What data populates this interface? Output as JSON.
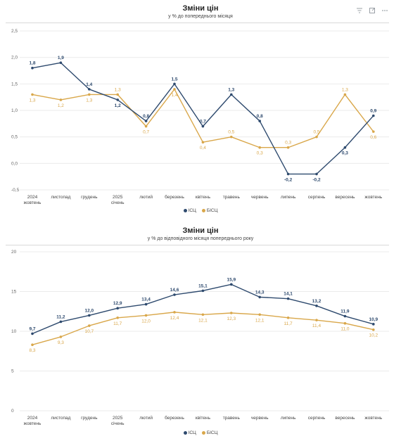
{
  "toolbar": {
    "icons": [
      "filter-icon",
      "expand-icon",
      "more-icon"
    ]
  },
  "chart_data": [
    {
      "type": "line",
      "title": "Зміни цін",
      "subtitle": "у % до попереднього місяця",
      "categories": [
        "2024 жовтень",
        "листопад",
        "грудень",
        "2025 січень",
        "лютий",
        "березень",
        "квітень",
        "травень",
        "червень",
        "липень",
        "серпень",
        "вересень",
        "жовтень"
      ],
      "category_lines": [
        [
          "2024",
          "жовтень"
        ],
        [
          "листопад"
        ],
        [
          "грудень"
        ],
        [
          "2025",
          "січень"
        ],
        [
          "лютий"
        ],
        [
          "березень"
        ],
        [
          "квітень"
        ],
        [
          "травень"
        ],
        [
          "червень"
        ],
        [
          "липень"
        ],
        [
          "серпень"
        ],
        [
          "вересень"
        ],
        [
          "жовтень"
        ]
      ],
      "ylim": [
        -0.5,
        2.5
      ],
      "yticks": [
        "-0,5",
        "0,0",
        "0,5",
        "1,0",
        "1,5",
        "2,0",
        "2,5"
      ],
      "ytick_values": [
        -0.5,
        0,
        0.5,
        1,
        1.5,
        2,
        2.5
      ],
      "series": [
        {
          "name": "ІСЦ",
          "color": "#2e4a6e",
          "values": [
            1.8,
            1.9,
            1.4,
            1.2,
            0.8,
            1.5,
            0.7,
            1.3,
            0.8,
            -0.2,
            -0.2,
            0.3,
            0.9
          ],
          "labels": [
            "1,8",
            "1,9",
            "1,4",
            "1,2",
            "0,8",
            "1,5",
            "0,7",
            "1,3",
            "0,8",
            "-0,2",
            "-0,2",
            "0,3",
            "0,9"
          ],
          "label_pos": [
            "above",
            "above",
            "above",
            "below",
            "above",
            "above",
            "above",
            "above",
            "above",
            "below",
            "below",
            "below",
            "above"
          ]
        },
        {
          "name": "БІСЦ",
          "color": "#d9a74a",
          "values": [
            1.3,
            1.2,
            1.3,
            1.3,
            0.7,
            1.4,
            0.4,
            0.5,
            0.3,
            0.3,
            0.5,
            1.3,
            0.6
          ],
          "labels": [
            "1,3",
            "1,2",
            "1,3",
            "1,3",
            "0,7",
            "1,4",
            "0,4",
            "0,5",
            "0,3",
            "0,3",
            "0,5",
            "1,3",
            "0,6"
          ],
          "label_pos": [
            "below",
            "below",
            "below",
            "above",
            "below",
            "below",
            "below",
            "above",
            "below",
            "above",
            "above",
            "above",
            "below"
          ]
        }
      ],
      "legend_position": "bottom-center",
      "grid": true
    },
    {
      "type": "line",
      "title": "Зміни цін",
      "subtitle": "у % до відповідного місяця попереднього року",
      "categories": [
        "2024 жовтень",
        "листопад",
        "грудень",
        "2025 січень",
        "лютий",
        "березень",
        "квітень",
        "травень",
        "червень",
        "липень",
        "серпень",
        "вересень",
        "жовтень"
      ],
      "category_lines": [
        [
          "2024",
          "жовтень"
        ],
        [
          "листопад"
        ],
        [
          "грудень"
        ],
        [
          "2025",
          "січень"
        ],
        [
          "лютий"
        ],
        [
          "березень"
        ],
        [
          "квітень"
        ],
        [
          "травень"
        ],
        [
          "червень"
        ],
        [
          "липень"
        ],
        [
          "серпень"
        ],
        [
          "вересень"
        ],
        [
          "жовтень"
        ]
      ],
      "ylim": [
        0,
        20
      ],
      "yticks": [
        "0",
        "5",
        "10",
        "15",
        "20"
      ],
      "ytick_values": [
        0,
        5,
        10,
        15,
        20
      ],
      "series": [
        {
          "name": "ІСЦ",
          "color": "#2e4a6e",
          "values": [
            9.7,
            11.2,
            12.0,
            12.9,
            13.4,
            14.6,
            15.1,
            15.9,
            14.3,
            14.1,
            13.2,
            11.9,
            10.9
          ],
          "labels": [
            "9,7",
            "11,2",
            "12,0",
            "12,9",
            "13,4",
            "14,6",
            "15,1",
            "15,9",
            "14,3",
            "14,1",
            "13,2",
            "11,9",
            "10,9"
          ],
          "label_pos": [
            "above",
            "above",
            "above",
            "above",
            "above",
            "above",
            "above",
            "above",
            "above",
            "above",
            "above",
            "above",
            "above"
          ]
        },
        {
          "name": "БІСЦ",
          "color": "#d9a74a",
          "values": [
            8.3,
            9.3,
            10.7,
            11.7,
            12.0,
            12.4,
            12.1,
            12.3,
            12.1,
            11.7,
            11.4,
            11.0,
            10.2
          ],
          "labels": [
            "8,3",
            "9,3",
            "10,7",
            "11,7",
            "12,0",
            "12,4",
            "12,1",
            "12,3",
            "12,1",
            "11,7",
            "11,4",
            "11,0",
            "10,2"
          ],
          "label_pos": [
            "below",
            "below",
            "below",
            "below",
            "below",
            "below",
            "below",
            "below",
            "below",
            "below",
            "below",
            "below",
            "below"
          ]
        }
      ],
      "legend_position": "bottom-center",
      "grid": true
    }
  ]
}
